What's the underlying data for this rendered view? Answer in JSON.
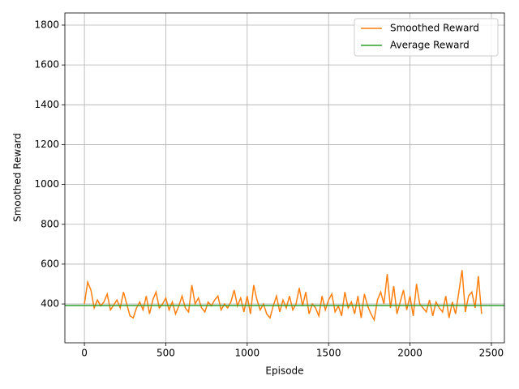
{
  "chart_data": {
    "type": "line",
    "xlabel": "Episode",
    "ylabel": "Smoothed Reward",
    "xlim": [
      -120,
      2580
    ],
    "ylim": [
      205,
      1861
    ],
    "xticks": [
      0,
      500,
      1000,
      1500,
      2000,
      2500
    ],
    "yticks": [
      400,
      600,
      800,
      1000,
      1200,
      1400,
      1600,
      1800
    ],
    "grid": true,
    "legend": "upper right",
    "series": [
      {
        "name": "Smoothed Reward",
        "color": "#ff7f0e",
        "x": [
          0,
          20,
          40,
          60,
          80,
          100,
          120,
          140,
          160,
          180,
          200,
          220,
          240,
          260,
          280,
          300,
          320,
          340,
          360,
          380,
          400,
          420,
          440,
          460,
          480,
          500,
          520,
          540,
          560,
          580,
          600,
          620,
          640,
          660,
          680,
          700,
          720,
          740,
          760,
          780,
          800,
          820,
          840,
          860,
          880,
          900,
          920,
          940,
          960,
          980,
          1000,
          1020,
          1040,
          1060,
          1080,
          1100,
          1120,
          1140,
          1160,
          1180,
          1200,
          1220,
          1240,
          1260,
          1280,
          1300,
          1320,
          1340,
          1360,
          1380,
          1400,
          1420,
          1440,
          1460,
          1480,
          1500,
          1520,
          1540,
          1560,
          1580,
          1600,
          1620,
          1640,
          1660,
          1680,
          1700,
          1720,
          1740,
          1760,
          1780,
          1800,
          1820,
          1840,
          1860,
          1880,
          1900,
          1920,
          1940,
          1960,
          1980,
          2000,
          2020,
          2040,
          2060,
          2080,
          2100,
          2120,
          2140,
          2160,
          2180,
          2200,
          2220,
          2240,
          2260,
          2280,
          2300,
          2320,
          2340,
          2360,
          2380,
          2400,
          2420,
          2440
        ],
        "values": [
          400,
          510,
          470,
          380,
          420,
          390,
          410,
          450,
          370,
          395,
          420,
          380,
          460,
          400,
          340,
          330,
          380,
          410,
          370,
          440,
          350,
          420,
          460,
          380,
          400,
          430,
          370,
          410,
          350,
          390,
          440,
          380,
          360,
          495,
          400,
          430,
          380,
          360,
          410,
          390,
          420,
          440,
          370,
          400,
          380,
          410,
          470,
          390,
          430,
          360,
          440,
          350,
          495,
          420,
          370,
          400,
          350,
          330,
          390,
          440,
          360,
          420,
          380,
          440,
          370,
          400,
          480,
          390,
          460,
          350,
          400,
          380,
          340,
          440,
          370,
          420,
          450,
          360,
          390,
          340,
          460,
          380,
          410,
          350,
          440,
          330,
          450,
          390,
          350,
          320,
          420,
          460,
          400,
          550,
          380,
          490,
          350,
          410,
          470,
          370,
          440,
          340,
          500,
          400,
          380,
          360,
          420,
          340,
          410,
          380,
          360,
          440,
          330,
          410,
          350,
          460,
          570,
          360,
          440,
          460,
          380,
          540,
          350
        ]
      },
      {
        "name": "Average Reward",
        "color": "#2ca02c",
        "x": [
          -120,
          2580
        ],
        "values": [
          392,
          392
        ]
      }
    ]
  }
}
